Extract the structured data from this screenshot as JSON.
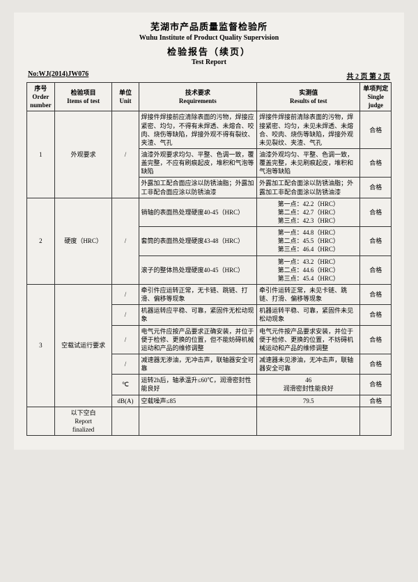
{
  "header": {
    "cn1": "芜湖市产品质量监督检验所",
    "en1": "Wuhu Institute of Product Quality Supervision",
    "cn2": "检验报告（续页）",
    "en2": "Test Report"
  },
  "sub": {
    "left": "No:WJ(2014)JW076",
    "right": "共 2 页 第 2 页"
  },
  "thead": {
    "c1a": "序号",
    "c1b": "Order",
    "c1c": "number",
    "c2a": "检验项目",
    "c2b": "Items of test",
    "c3a": "单位",
    "c3b": "Unit",
    "c4a": "技术要求",
    "c4b": "Requirements",
    "c5a": "实测值",
    "c5b": "Results of test",
    "c6a": "单项判定",
    "c6b": "Single",
    "c6c": "judge"
  },
  "sec1": {
    "no": "1",
    "item": "外观要求",
    "unit": "/",
    "r1_req": "焊接件焊接前应清除表面的污物，焊接应紧密、均匀，不得有未焊透、未熔合、咬肉、烧伤等缺陷，焊接外观不得有裂纹、夹渣、气孔",
    "r1_res": "焊接件焊接前清除表面的污物，焊接紧密、均匀，未见未焊透、未熔合、咬肉、烧伤等缺陷，焊接外观未见裂纹、夹渣、气孔",
    "r1_j": "合格",
    "r2_req": "油漆外观要求均匀、平整、色调一致，覆盖完整，不应有刷痕起皮，堆积和气泡等缺陷",
    "r2_res": "油漆外观均匀、平整、色调一致，覆盖完整，未见刷痕起皮，堆积和气泡等缺陷",
    "r2_j": "合格",
    "r3_req": "外露加工配合面应涂以防锈油脂；外露加工非配合面应涂以防锈油漆",
    "r3_res": "外露加工配合面涂以防锈油脂；外露加工非配合面涂以防锈油漆",
    "r3_j": "合格"
  },
  "sec2": {
    "no": "2",
    "item": "硬度（HRC）",
    "unit": "/",
    "r1_req": "销轴的表面热处理硬度40-45（HRC）",
    "r1_res": "第一点：42.2（HRC）\n第二点：42.7（HRC）\n第三点：42.3（HRC）",
    "r1_j": "合格",
    "r2_req": "套筒的表面热处理硬度43-48（HRC）",
    "r2_res": "第一点：44.8（HRC）\n第二点：45.5（HRC）\n第三点：46.4（HRC）",
    "r2_j": "合格",
    "r3_req": "滚子的整体热处理硬度40-45（HRC）",
    "r3_res": "第一点：43.2（HRC）\n第二点：44.6（HRC）\n第三点：45.4（HRC）",
    "r3_j": "合格"
  },
  "sec3": {
    "no": "3",
    "item": "空载试运行要求",
    "r1_u": "/",
    "r1_req": "牵引件应运转正常，无卡链、跳链、打滑、偏移等现象",
    "r1_res": "牵引件运转正常，未见卡链、跳链、打滑、偏移等现象",
    "r1_j": "合格",
    "r2_u": "/",
    "r2_req": "机器运转应平稳、可靠，紧固件无松动现象",
    "r2_res": "机器运转平稳、可靠，紧固件未见松动现象",
    "r2_j": "合格",
    "r3_u": "/",
    "r3_req": "电气元件应按产品要求正确安装，并位于便于检修、更换的位置，但不能妨碍机械运动和产品的维修调整",
    "r3_res": "电气元件按产品要求安装，并位于便于检修、更换的位置，不妨碍机械运动和产品的维修调整",
    "r3_j": "合格",
    "r4_u": "/",
    "r4_req": "减速器无渗油，无冲击声，联轴器安全可靠",
    "r4_res": "减速器未见渗油，无冲击声，联轴器安全可靠",
    "r4_j": "合格",
    "r5_u": "℃",
    "r5_req": "运转2h后，轴承温升≤60℃，润滑密封性能良好",
    "r5_res": "46\n润滑密封性能良好",
    "r5_j": "合格",
    "r6_u": "dB(A)",
    "r6_req": "空载噪声≤85",
    "r6_res": "79.5",
    "r6_j": "合格"
  },
  "footer": {
    "blank": "以下空白",
    "en1": "Report",
    "en2": "finalized"
  }
}
